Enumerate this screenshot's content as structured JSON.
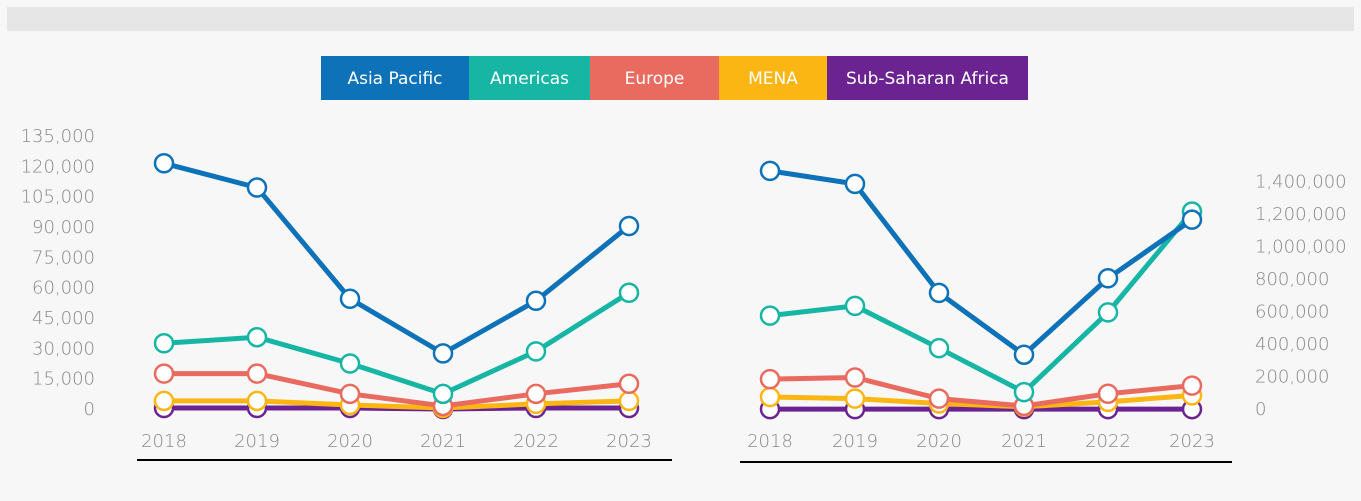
{
  "legend": [
    {
      "name": "Asia Pacific",
      "color": "#0e72b8"
    },
    {
      "name": "Americas",
      "color": "#17b6a4"
    },
    {
      "name": "Europe",
      "color": "#e96a5e"
    },
    {
      "name": "MENA",
      "color": "#fbb614"
    },
    {
      "name": "Sub-Saharan Africa",
      "color": "#6b2392"
    }
  ],
  "chart_data": [
    {
      "type": "line",
      "categories": [
        "2018",
        "2019",
        "2020",
        "2021",
        "2022",
        "2023"
      ],
      "ylim": [
        0,
        135000
      ],
      "yticks": [
        0,
        {
          "value": 15000,
          "label": "15,000"
        },
        {
          "value": 30000,
          "label": "30,000"
        },
        {
          "value": 45000,
          "label": "45,000"
        },
        {
          "value": 60000,
          "label": "60,000"
        },
        {
          "value": 75000,
          "label": "75,000"
        },
        {
          "value": 90000,
          "label": "90,000"
        },
        {
          "value": 105000,
          "label": "105,000"
        },
        {
          "value": 120000,
          "label": "120,000"
        },
        {
          "value": 135000,
          "label": "135,000"
        }
      ],
      "series": [
        {
          "values": [
            122000,
            110000,
            55000,
            28000,
            54000,
            91000
          ]
        },
        {
          "values": [
            33000,
            36000,
            23000,
            8000,
            29000,
            58000
          ]
        },
        {
          "values": [
            18000,
            18000,
            8000,
            2000,
            8000,
            13000
          ]
        },
        {
          "values": [
            4500,
            4500,
            2500,
            1000,
            3000,
            4500
          ]
        },
        {
          "values": [
            1000,
            1000,
            1000,
            500,
            1000,
            1000
          ]
        }
      ]
    },
    {
      "type": "line",
      "categories": [
        "2018",
        "2019",
        "2020",
        "2021",
        "2022",
        "2023"
      ],
      "ylim": [
        0,
        1500000
      ],
      "yticks": [
        0,
        {
          "value": 200000,
          "label": "200,000"
        },
        {
          "value": 400000,
          "label": "400,000"
        },
        {
          "value": 600000,
          "label": "600,000"
        },
        {
          "value": 800000,
          "label": "800,000"
        },
        {
          "value": 1000000,
          "label": "1,000,000"
        },
        {
          "value": 1200000,
          "label": "1,200,000"
        },
        {
          "value": 1400000,
          "label": "1,400,000"
        }
      ],
      "series": [
        {
          "values": [
            1470000,
            1390000,
            720000,
            340000,
            810000,
            1170000
          ]
        },
        {
          "values": [
            580000,
            640000,
            380000,
            110000,
            600000,
            1220000
          ]
        },
        {
          "values": [
            190000,
            200000,
            70000,
            25000,
            100000,
            150000
          ]
        },
        {
          "values": [
            80000,
            70000,
            40000,
            20000,
            50000,
            90000
          ]
        },
        {
          "values": [
            5000,
            5000,
            5000,
            5000,
            5000,
            5000
          ]
        }
      ]
    }
  ]
}
